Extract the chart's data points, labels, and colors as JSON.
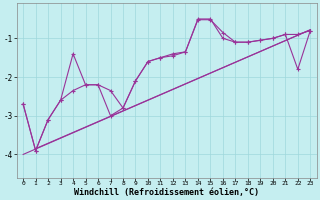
{
  "bg_color": "#c5eef0",
  "grid_color": "#9fd8dc",
  "line_color": "#993399",
  "xlabel": "Windchill (Refroidissement éolien,°C)",
  "xlabel_fontsize": 6.0,
  "ylabel_ticks": [
    -4,
    -3,
    -2,
    -1
  ],
  "xlim": [
    -0.5,
    23.5
  ],
  "ylim": [
    -4.6,
    -0.1
  ],
  "xticks": [
    0,
    1,
    2,
    3,
    4,
    5,
    6,
    7,
    8,
    9,
    10,
    11,
    12,
    13,
    14,
    15,
    16,
    17,
    18,
    19,
    20,
    21,
    22,
    23
  ],
  "line1_x": [
    0,
    1,
    2,
    3,
    4,
    5,
    6,
    7,
    8,
    9,
    10,
    11,
    12,
    13,
    14,
    15,
    16,
    17,
    18,
    19,
    20,
    21,
    22,
    23
  ],
  "line1_y": [
    -2.7,
    -3.9,
    -3.1,
    -2.6,
    -1.4,
    -2.2,
    -2.2,
    -3.0,
    -2.8,
    -2.1,
    -1.6,
    -1.5,
    -1.4,
    -1.35,
    -0.5,
    -0.5,
    -1.0,
    -1.1,
    -1.1,
    -1.05,
    -1.0,
    -0.9,
    -0.9,
    -0.8
  ],
  "line2_x": [
    0,
    1,
    2,
    3,
    4,
    5,
    6,
    7,
    8,
    9,
    10,
    11,
    12,
    13,
    14,
    15,
    16,
    17,
    18,
    19,
    20,
    21,
    22,
    23
  ],
  "line2_y": [
    -2.7,
    -3.9,
    -3.1,
    -2.6,
    -2.35,
    -2.2,
    -2.2,
    -2.35,
    -2.8,
    -2.1,
    -1.6,
    -1.5,
    -1.45,
    -1.35,
    -0.52,
    -0.52,
    -0.85,
    -1.1,
    -1.1,
    -1.05,
    -1.0,
    -0.9,
    -1.8,
    -0.8
  ],
  "line3_x": [
    0,
    23
  ],
  "line3_y": [
    -4.0,
    -0.78
  ],
  "line4_x": [
    1,
    23
  ],
  "line4_y": [
    -3.85,
    -0.78
  ]
}
